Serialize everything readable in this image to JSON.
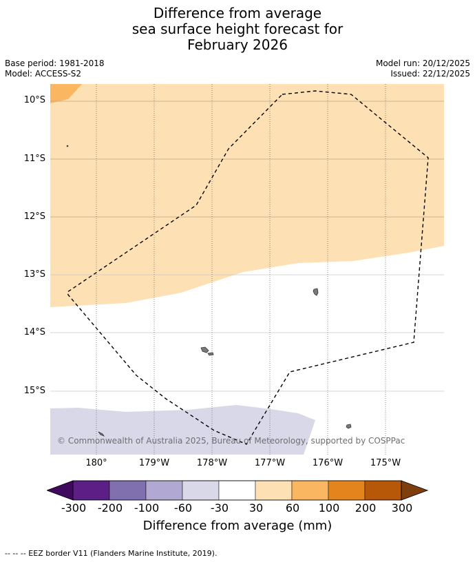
{
  "title": {
    "line1": "Difference from average",
    "line2": "sea surface height forecast for",
    "line3": "February 2026"
  },
  "meta": {
    "base_period": "Base period: 1981-2018",
    "model": "Model: ACCESS-S2",
    "model_run": "Model run: 20/12/2025",
    "issued": "Issued: 22/12/2025"
  },
  "map": {
    "lat_labels": [
      "10°S",
      "11°S",
      "12°S",
      "13°S",
      "14°S",
      "15°S"
    ],
    "lon_labels": [
      "180°",
      "179°W",
      "178°W",
      "177°W",
      "176°W",
      "175°W"
    ],
    "copyright": "© Commonwealth of Australia 2025, Bureau of Meteorology, supported by COSPPac"
  },
  "colorbar": {
    "ticks": [
      "-300",
      "-200",
      "-100",
      "-60",
      "-30",
      "30",
      "60",
      "100",
      "200",
      "300"
    ],
    "colors": [
      "#5b1f86",
      "#8071ae",
      "#b1a9d1",
      "#d8d8e9",
      "#ffffff",
      "#fde0b3",
      "#fbb661",
      "#e3841c",
      "#b75808"
    ],
    "under_color": "#3f0a5e",
    "over_color": "#7e3e0e",
    "label": "Difference from average (mm)"
  },
  "legend": {
    "eez_text": "--  --  -- EEZ border V11 (Flanders Marine Institute, 2019)."
  }
}
